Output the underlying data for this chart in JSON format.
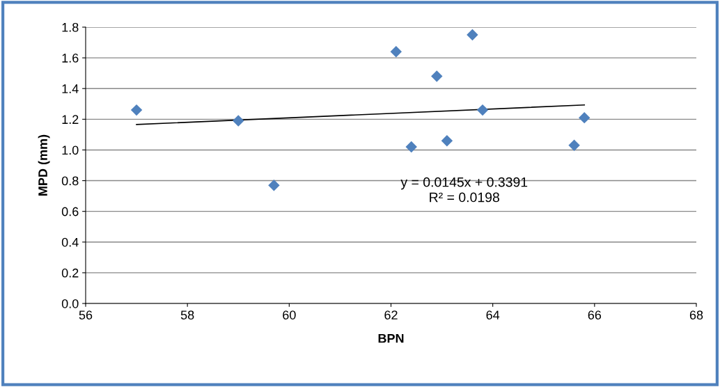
{
  "chart_data": {
    "type": "scatter",
    "xlabel": "BPN",
    "ylabel": "MPD (mm)",
    "xlim": [
      56,
      68
    ],
    "xticks": [
      56,
      58,
      60,
      62,
      64,
      66,
      68
    ],
    "ylim": [
      0.0,
      1.8
    ],
    "yticks": [
      {
        "value": 0.0,
        "label": "0.0"
      },
      {
        "value": 0.2,
        "label": "0.2"
      },
      {
        "value": 0.4,
        "label": "0.4"
      },
      {
        "value": 0.6,
        "label": "0.6"
      },
      {
        "value": 0.8,
        "label": "0.8"
      },
      {
        "value": 1.0,
        "label": "1.0"
      },
      {
        "value": 1.2,
        "label": "1.2"
      },
      {
        "value": 1.4,
        "label": "1.4"
      },
      {
        "value": 1.6,
        "label": "1.6"
      },
      {
        "value": 1.8,
        "label": "1.8"
      }
    ],
    "grid": "y",
    "series": [
      {
        "marker": "diamond",
        "color": "#4f81bd",
        "x": [
          57.0,
          59.0,
          59.7,
          62.1,
          62.4,
          62.9,
          63.1,
          63.6,
          63.8,
          65.6,
          65.8
        ],
        "values": [
          1.26,
          1.19,
          0.77,
          1.64,
          1.02,
          1.48,
          1.06,
          1.75,
          1.26,
          1.03,
          1.21
        ]
      },
      {
        "type": "line",
        "marker": "none",
        "color": "#000000",
        "x": [
          57.0,
          65.8
        ],
        "values": [
          1.166,
          1.293
        ]
      }
    ],
    "annotations": [
      "y = 0.0145x + 0.3391",
      "R² = 0.0198"
    ]
  }
}
